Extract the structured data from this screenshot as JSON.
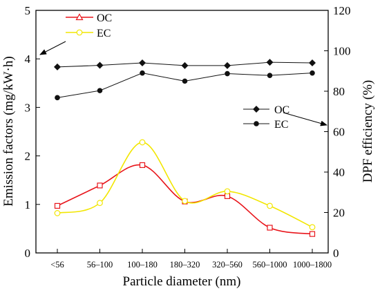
{
  "chart_data": {
    "type": "line",
    "title": "",
    "xlabel": "Particle diameter (nm)",
    "ylabel": "Emission factors (mg/kW·h)",
    "y2label": "DPF efficiency (%)",
    "categories": [
      "<56",
      "56–100",
      "100–180",
      "180–320",
      "320–560",
      "560–1000",
      "1000–1800"
    ],
    "ylim": [
      0,
      5
    ],
    "yticks": [
      0,
      1,
      2,
      3,
      4,
      5
    ],
    "y2lim": [
      0,
      120
    ],
    "y2ticks": [
      0,
      20,
      40,
      60,
      80,
      100,
      120
    ],
    "grid": false,
    "series": [
      {
        "name": "OC",
        "axis": "left",
        "marker": "open-triangle",
        "markers_shown": "open-square",
        "color": "#e8141a",
        "smooth": true,
        "values": [
          0.97,
          1.39,
          1.81,
          1.06,
          1.17,
          0.52,
          0.39
        ]
      },
      {
        "name": "EC",
        "axis": "left",
        "marker": "open-circle",
        "color": "#f2e600",
        "smooth": true,
        "values": [
          0.82,
          1.03,
          2.28,
          1.07,
          1.27,
          0.97,
          0.53
        ]
      },
      {
        "name": "OC",
        "axis": "right",
        "marker": "filled-diamond",
        "color": "#111111",
        "smooth": false,
        "values": [
          92,
          92.8,
          94,
          92.7,
          92.7,
          94.3,
          94
        ]
      },
      {
        "name": "EC",
        "axis": "right",
        "marker": "filled-circle",
        "color": "#111111",
        "smooth": false,
        "values": [
          76.8,
          80.3,
          89,
          85,
          88.7,
          87.8,
          89
        ]
      }
    ],
    "legend_left": {
      "position": "top-left",
      "entries": [
        "OC",
        "EC"
      ]
    },
    "legend_right": {
      "position": "middle-right",
      "entries": [
        "OC",
        "EC"
      ]
    }
  }
}
